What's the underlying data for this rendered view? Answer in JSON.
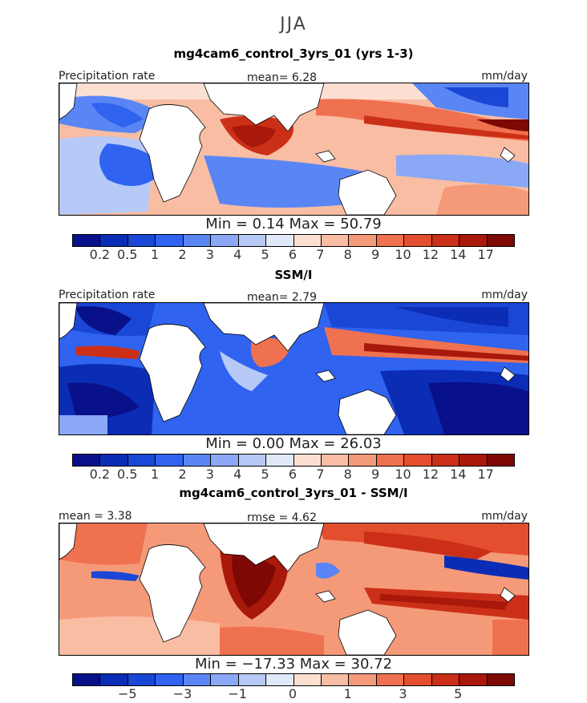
{
  "season": "JJA",
  "colors": {
    "scale": [
      "#08118a",
      "#0b2db5",
      "#1a47d6",
      "#2f63f0",
      "#5a86f5",
      "#8aa8f6",
      "#b6c9f7",
      "#e1e9f8",
      "#fbe0d2",
      "#f9bda3",
      "#f59a79",
      "#ef7150",
      "#e34e2f",
      "#cc2f17",
      "#a8180b",
      "#7e0803"
    ]
  },
  "panels": [
    {
      "title": "mg4cam6_control_3yrs_01 (yrs 1-3)",
      "left_label": "Precipitation rate",
      "center_label": "mean=    6.28",
      "right_label": "mm/day",
      "stats": "Min =    0.14  Max =   50.79",
      "ticks": [
        "0.2",
        "0.5",
        "1",
        "2",
        "3",
        "4",
        "5",
        "6",
        "7",
        "8",
        "9",
        "10",
        "12",
        "14",
        "17"
      ]
    },
    {
      "title": "SSM/I",
      "left_label": "Precipitation rate",
      "center_label": "mean=    2.79",
      "right_label": "mm/day",
      "stats": "Min =    0.00  Max =   26.03",
      "ticks": [
        "0.2",
        "0.5",
        "1",
        "2",
        "3",
        "4",
        "5",
        "6",
        "7",
        "8",
        "9",
        "10",
        "12",
        "14",
        "17"
      ]
    },
    {
      "title": "mg4cam6_control_3yrs_01 - SSM/I",
      "left_label": "mean =    3.38",
      "center_label": "rmse =    4.62",
      "right_label": "mm/day",
      "stats": "Min = −17.33  Max =   30.72",
      "ticks": [
        "−5",
        "−3",
        "−1",
        "0",
        "1",
        "3",
        "5"
      ]
    }
  ]
}
